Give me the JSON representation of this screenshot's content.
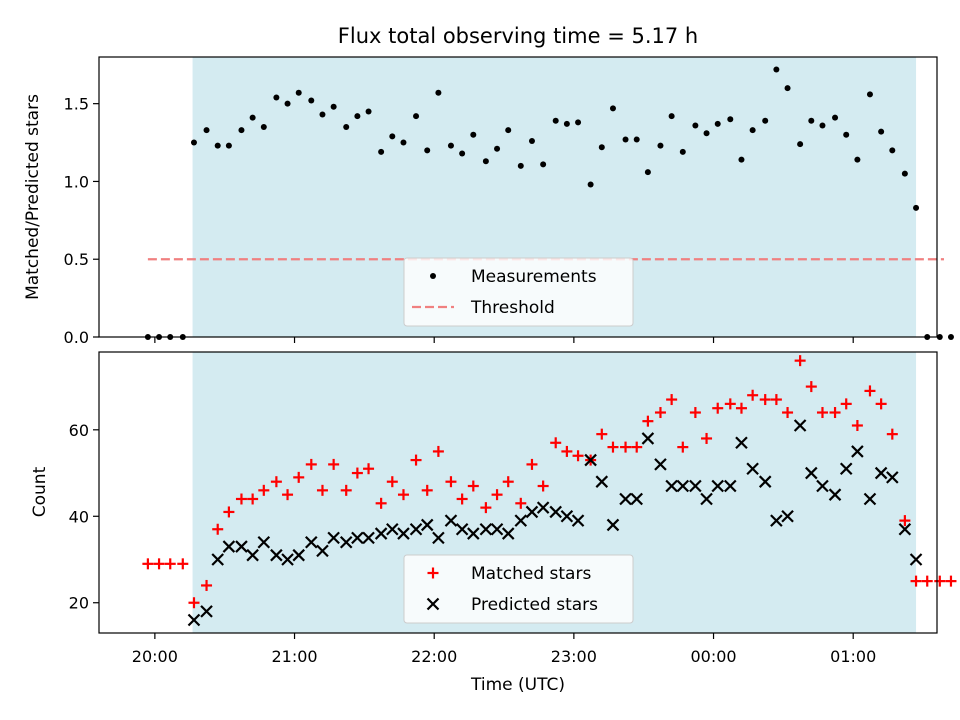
{
  "chart_data": [
    {
      "type": "scatter",
      "title": "Flux total observing time = 5.17 h",
      "xlabel": "",
      "ylabel": "Matched/Predicted stars",
      "ylim": [
        0,
        1.8
      ],
      "yticks": [
        0.0,
        0.5,
        1.0,
        1.5
      ],
      "ytick_labels": [
        "0.0",
        "0.5",
        "1.0",
        "1.5"
      ],
      "xlim_hours": [
        19.6,
        25.6
      ],
      "xticks_hours": [
        20,
        21,
        22,
        23,
        24,
        25
      ],
      "observing_window_hours": [
        20.27,
        25.45
      ],
      "window_color": "#d4ebf1",
      "legend_position": "bottom-center",
      "threshold": {
        "name": "Threshold",
        "value": 0.5,
        "x_range_hours": [
          19.95,
          25.65
        ],
        "color": "#f08080"
      },
      "series": [
        {
          "name": "Measurements",
          "color": "#000000",
          "x_hours": [
            19.95,
            20.03,
            20.11,
            20.2,
            20.28,
            20.37,
            20.45,
            20.53,
            20.62,
            20.7,
            20.78,
            20.87,
            20.95,
            21.03,
            21.12,
            21.2,
            21.28,
            21.37,
            21.45,
            21.53,
            21.62,
            21.7,
            21.78,
            21.87,
            21.95,
            22.03,
            22.12,
            22.2,
            22.28,
            22.37,
            22.45,
            22.53,
            22.62,
            22.7,
            22.78,
            22.87,
            22.95,
            23.03,
            23.12,
            23.2,
            23.28,
            23.37,
            23.45,
            23.53,
            23.62,
            23.7,
            23.78,
            23.87,
            23.95,
            24.03,
            24.12,
            24.2,
            24.28,
            24.37,
            24.45,
            24.53,
            24.62,
            24.7,
            24.78,
            24.87,
            24.95,
            25.03,
            25.12,
            25.2,
            25.28,
            25.37,
            25.45,
            25.53,
            25.62,
            25.7
          ],
          "values": [
            0,
            0,
            0,
            0,
            1.25,
            1.33,
            1.23,
            1.23,
            1.33,
            1.41,
            1.35,
            1.54,
            1.5,
            1.57,
            1.52,
            1.43,
            1.48,
            1.35,
            1.42,
            1.45,
            1.19,
            1.29,
            1.25,
            1.42,
            1.2,
            1.57,
            1.23,
            1.18,
            1.3,
            1.13,
            1.21,
            1.33,
            1.1,
            1.26,
            1.11,
            1.39,
            1.37,
            1.38,
            0.98,
            1.22,
            1.47,
            1.27,
            1.27,
            1.06,
            1.23,
            1.42,
            1.19,
            1.36,
            1.31,
            1.37,
            1.4,
            1.14,
            1.33,
            1.39,
            1.72,
            1.6,
            1.24,
            1.39,
            1.36,
            1.41,
            1.3,
            1.14,
            1.56,
            1.32,
            1.2,
            1.05,
            0.83,
            0,
            0,
            0
          ]
        }
      ]
    },
    {
      "type": "scatter",
      "title": "",
      "xlabel": "Time (UTC)",
      "ylabel": "Count",
      "ylim": [
        13,
        78
      ],
      "yticks": [
        20,
        40,
        60
      ],
      "ytick_labels": [
        "20",
        "40",
        "60"
      ],
      "xlim_hours": [
        19.6,
        25.6
      ],
      "xticks_hours": [
        20,
        21,
        22,
        23,
        24,
        25
      ],
      "xtick_labels": [
        "20:00",
        "21:00",
        "22:00",
        "23:00",
        "00:00",
        "01:00"
      ],
      "observing_window_hours": [
        20.27,
        25.45
      ],
      "window_color": "#d4ebf1",
      "legend_position": "bottom-center",
      "series": [
        {
          "name": "Matched stars",
          "marker": "plus",
          "color": "#ff0000",
          "x_hours": [
            19.95,
            20.03,
            20.11,
            20.2,
            20.28,
            20.37,
            20.45,
            20.53,
            20.62,
            20.7,
            20.78,
            20.87,
            20.95,
            21.03,
            21.12,
            21.2,
            21.28,
            21.37,
            21.45,
            21.53,
            21.62,
            21.7,
            21.78,
            21.87,
            21.95,
            22.03,
            22.12,
            22.2,
            22.28,
            22.37,
            22.45,
            22.53,
            22.62,
            22.7,
            22.78,
            22.87,
            22.95,
            23.03,
            23.12,
            23.2,
            23.28,
            23.37,
            23.45,
            23.53,
            23.62,
            23.7,
            23.78,
            23.87,
            23.95,
            24.03,
            24.12,
            24.2,
            24.28,
            24.37,
            24.45,
            24.53,
            24.62,
            24.7,
            24.78,
            24.87,
            24.95,
            25.03,
            25.12,
            25.2,
            25.28,
            25.37,
            25.45,
            25.53,
            25.62,
            25.7
          ],
          "values": [
            29,
            29,
            29,
            29,
            20,
            24,
            37,
            41,
            44,
            44,
            46,
            48,
            45,
            49,
            52,
            46,
            52,
            46,
            50,
            51,
            43,
            48,
            45,
            53,
            46,
            55,
            48,
            44,
            47,
            42,
            45,
            48,
            43,
            52,
            47,
            57,
            55,
            54,
            53,
            59,
            56,
            56,
            56,
            62,
            64,
            67,
            56,
            64,
            58,
            65,
            66,
            65,
            68,
            67,
            67,
            64,
            76,
            70,
            64,
            64,
            66,
            61,
            69,
            66,
            59,
            39,
            25,
            25,
            25,
            25
          ]
        },
        {
          "name": "Predicted stars",
          "marker": "x",
          "color": "#000000",
          "x_hours": [
            20.28,
            20.37,
            20.45,
            20.53,
            20.62,
            20.7,
            20.78,
            20.87,
            20.95,
            21.03,
            21.12,
            21.2,
            21.28,
            21.37,
            21.45,
            21.53,
            21.62,
            21.7,
            21.78,
            21.87,
            21.95,
            22.03,
            22.12,
            22.2,
            22.28,
            22.37,
            22.45,
            22.53,
            22.62,
            22.7,
            22.78,
            22.87,
            22.95,
            23.03,
            23.12,
            23.2,
            23.28,
            23.37,
            23.45,
            23.53,
            23.62,
            23.7,
            23.78,
            23.87,
            23.95,
            24.03,
            24.12,
            24.2,
            24.28,
            24.37,
            24.45,
            24.53,
            24.62,
            24.7,
            24.78,
            24.87,
            24.95,
            25.03,
            25.12,
            25.2,
            25.28,
            25.37,
            25.45
          ],
          "values": [
            16,
            18,
            30,
            33,
            33,
            31,
            34,
            31,
            30,
            31,
            34,
            32,
            35,
            34,
            35,
            35,
            36,
            37,
            36,
            37,
            38,
            35,
            39,
            37,
            36,
            37,
            37,
            36,
            39,
            41,
            42,
            41,
            40,
            39,
            53,
            48,
            38,
            44,
            44,
            58,
            52,
            47,
            47,
            47,
            44,
            47,
            47,
            57,
            51,
            48,
            39,
            40,
            61,
            50,
            47,
            45,
            51,
            55,
            44,
            50,
            49,
            37,
            30
          ]
        }
      ]
    }
  ]
}
